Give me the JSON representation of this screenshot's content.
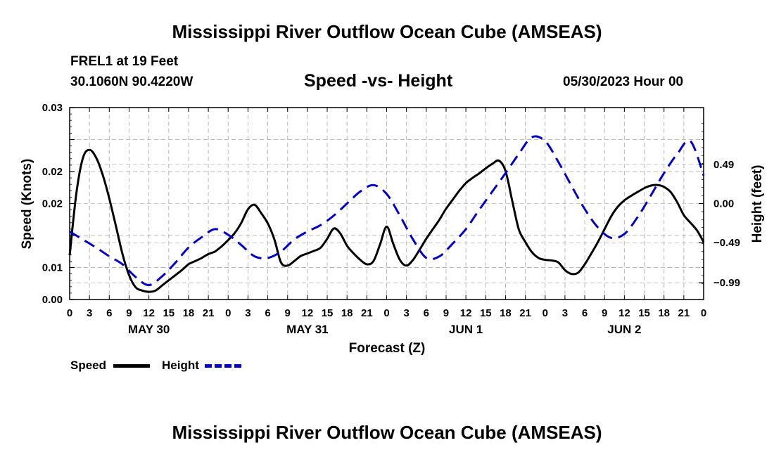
{
  "page": {
    "title_top": "Mississippi River Outflow Ocean Cube (AMSEAS)",
    "title_bottom": "Mississippi River Outflow Ocean Cube (AMSEAS)",
    "station": "FREL1 at 19 Feet",
    "coords": "30.1060N  90.4220W",
    "subtitle": "Speed -vs- Height",
    "datetime": "05/30/2023 Hour 00"
  },
  "chart_data": {
    "type": "line",
    "xlabel": "Forecast (Z)",
    "ylabel_left": "Speed (Knots)",
    "ylabel_right": "Height (feet)",
    "x_range": [
      0,
      96
    ],
    "y_left_range": [
      0.0,
      0.03
    ],
    "y_right_range": [
      -1.2,
      1.2
    ],
    "x_tick_labels": [
      "0",
      "3",
      "6",
      "9",
      "12",
      "15",
      "18",
      "21",
      "0",
      "3",
      "6",
      "9",
      "12",
      "15",
      "18",
      "21",
      "0",
      "3",
      "6",
      "9",
      "12",
      "15",
      "18",
      "21",
      "0",
      "3",
      "6",
      "9",
      "12",
      "15",
      "18",
      "21",
      "0"
    ],
    "day_labels": [
      {
        "x": 12,
        "label": "MAY 30"
      },
      {
        "x": 36,
        "label": "MAY 31"
      },
      {
        "x": 60,
        "label": "JUN 1"
      },
      {
        "x": 84,
        "label": "JUN 2"
      }
    ],
    "y_left_ticks": [
      0.0,
      0.005,
      0.01,
      0.015,
      0.02,
      0.025,
      0.03
    ],
    "y_left_tick_labels": [
      "0.00",
      "0.01",
      "0.02",
      "0.02",
      "0.03"
    ],
    "y_left_tick_values": [
      0.0,
      0.005,
      0.015,
      0.02,
      0.03
    ],
    "y_right_ticks": [
      -0.99,
      -0.49,
      0.0,
      0.49
    ],
    "y_right_tick_labels": [
      "−0.99",
      "−0.49",
      "0.00",
      "0.49"
    ],
    "series": [
      {
        "name": "Speed",
        "axis": "left",
        "color": "#000000",
        "dash": "solid",
        "x": [
          0,
          1,
          2,
          3,
          4,
          5,
          6,
          7,
          8,
          9,
          10,
          11,
          12,
          13,
          14,
          15,
          16,
          17,
          18,
          19,
          20,
          21,
          22,
          23,
          24,
          25,
          26,
          27,
          28,
          29,
          30,
          31,
          32,
          33,
          34,
          35,
          36,
          37,
          38,
          39,
          40,
          41,
          42,
          43,
          44,
          45,
          46,
          47,
          48,
          49,
          50,
          51,
          52,
          53,
          54,
          55,
          56,
          57,
          58,
          59,
          60,
          61,
          62,
          63,
          64,
          65,
          66,
          67,
          68,
          69,
          70,
          71,
          72,
          73,
          74,
          75,
          76,
          77,
          78,
          79,
          80,
          81,
          82,
          83,
          84,
          85,
          86,
          87,
          88,
          89,
          90,
          91,
          92,
          93,
          94,
          95,
          96
        ],
        "values": [
          0.0069,
          0.0165,
          0.0221,
          0.0234,
          0.0222,
          0.0195,
          0.0158,
          0.0115,
          0.0071,
          0.0038,
          0.0019,
          0.0014,
          0.0012,
          0.0014,
          0.0022,
          0.003,
          0.0038,
          0.0046,
          0.0055,
          0.006,
          0.0065,
          0.0071,
          0.0075,
          0.0083,
          0.0093,
          0.0104,
          0.012,
          0.0141,
          0.0148,
          0.0135,
          0.0119,
          0.0094,
          0.0058,
          0.0053,
          0.006,
          0.0068,
          0.0072,
          0.0076,
          0.0081,
          0.0095,
          0.0111,
          0.0103,
          0.0084,
          0.0072,
          0.0062,
          0.0055,
          0.006,
          0.0086,
          0.0114,
          0.0087,
          0.0062,
          0.0053,
          0.0062,
          0.0078,
          0.0095,
          0.011,
          0.0125,
          0.0142,
          0.0156,
          0.017,
          0.0182,
          0.019,
          0.0197,
          0.0205,
          0.0212,
          0.0217,
          0.0201,
          0.0155,
          0.011,
          0.009,
          0.0074,
          0.0065,
          0.0062,
          0.0061,
          0.0058,
          0.0046,
          0.004,
          0.0042,
          0.0055,
          0.0072,
          0.009,
          0.011,
          0.013,
          0.0145,
          0.0155,
          0.0162,
          0.0168,
          0.0174,
          0.0178,
          0.0179,
          0.0176,
          0.0168,
          0.0152,
          0.0132,
          0.012,
          0.0108,
          0.009
        ]
      },
      {
        "name": "Height",
        "axis": "right",
        "color": "#0000cc",
        "dash": "dashed",
        "x": [
          0,
          2,
          4,
          6,
          8,
          10,
          12,
          14,
          16,
          18,
          20,
          22,
          24,
          26,
          28,
          30,
          32,
          34,
          36,
          38,
          40,
          42,
          44,
          46,
          48,
          50,
          52,
          54,
          56,
          58,
          60,
          62,
          64,
          66,
          68,
          70,
          72,
          74,
          76,
          78,
          80,
          82,
          84,
          86,
          88,
          90,
          92,
          94,
          96
        ],
        "values": [
          -0.35,
          -0.45,
          -0.55,
          -0.66,
          -0.76,
          -0.92,
          -1.02,
          -0.91,
          -0.74,
          -0.55,
          -0.42,
          -0.32,
          -0.39,
          -0.52,
          -0.66,
          -0.68,
          -0.6,
          -0.45,
          -0.35,
          -0.27,
          -0.15,
          0.0,
          0.15,
          0.23,
          0.12,
          -0.15,
          -0.45,
          -0.68,
          -0.66,
          -0.5,
          -0.32,
          -0.08,
          0.15,
          0.38,
          0.62,
          0.83,
          0.78,
          0.52,
          0.22,
          -0.07,
          -0.3,
          -0.43,
          -0.38,
          -0.17,
          0.1,
          0.38,
          0.62,
          0.78,
          0.35
        ]
      }
    ],
    "legend": [
      {
        "label": "Speed",
        "color": "#000000",
        "dash": "solid"
      },
      {
        "label": "Height",
        "color": "#0000cc",
        "dash": "dashed"
      }
    ],
    "grid": true
  }
}
